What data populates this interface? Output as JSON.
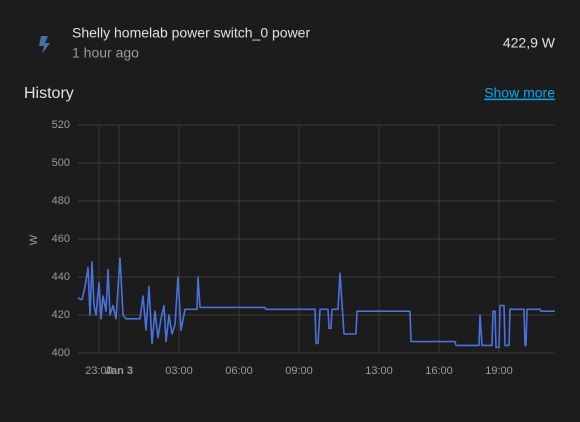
{
  "header": {
    "entity_name": "Shelly homelab power switch_0 power",
    "last_changed": "1 hour ago",
    "state": "422,9 W"
  },
  "history": {
    "title": "History",
    "link": "Show more"
  },
  "chart_data": {
    "type": "line",
    "y_label": "W",
    "color": "#4a72dc",
    "grid": true,
    "ylim": [
      400,
      520
    ],
    "yticks": [
      400,
      420,
      440,
      460,
      480,
      500,
      520
    ],
    "xlim": [
      -2.05,
      21.8
    ],
    "xticks": [
      {
        "value": -1,
        "label": "23:00"
      },
      {
        "value": 0,
        "label": "Jan 3"
      },
      {
        "value": 3,
        "label": "03:00"
      },
      {
        "value": 6,
        "label": "06:00"
      },
      {
        "value": 9,
        "label": "09:00"
      },
      {
        "value": 13,
        "label": "13:00"
      },
      {
        "value": 16,
        "label": "16:00"
      },
      {
        "value": 19,
        "label": "19:00"
      }
    ],
    "x": [
      -2.05,
      -1.85,
      -1.7,
      -1.55,
      -1.45,
      -1.35,
      -1.25,
      -1.15,
      -1.0,
      -0.9,
      -0.8,
      -0.65,
      -0.55,
      -0.45,
      -0.3,
      -0.15,
      0.05,
      0.2,
      0.35,
      1.05,
      1.2,
      1.35,
      1.5,
      1.65,
      1.8,
      1.95,
      2.1,
      2.25,
      2.35,
      2.5,
      2.65,
      2.8,
      2.95,
      3.1,
      3.3,
      3.9,
      3.95,
      4.05,
      7.3,
      7.35,
      9.8,
      9.85,
      9.95,
      10.05,
      10.45,
      10.5,
      10.6,
      10.65,
      10.95,
      11.05,
      11.25,
      11.85,
      11.9,
      14.55,
      14.6,
      16.8,
      16.85,
      18.0,
      18.05,
      18.15,
      18.65,
      18.7,
      18.8,
      18.85,
      19.0,
      19.05,
      19.25,
      19.3,
      19.5,
      19.55,
      20.25,
      20.3,
      20.35,
      20.4,
      21.05,
      21.1,
      21.8
    ],
    "values": [
      429,
      428,
      435,
      445,
      420,
      448,
      425,
      420,
      437,
      418,
      430,
      422,
      444,
      420,
      425,
      418,
      450,
      420,
      418,
      418,
      430,
      412,
      435,
      405,
      422,
      408,
      418,
      425,
      406,
      420,
      410,
      415,
      440,
      412,
      423,
      423,
      440,
      424,
      424,
      423,
      423,
      405,
      405,
      423,
      423,
      413,
      413,
      423,
      423,
      442,
      410,
      410,
      422,
      422,
      406,
      406,
      404,
      404,
      420,
      404,
      404,
      422,
      422,
      403,
      403,
      425,
      425,
      404,
      404,
      423,
      423,
      404,
      404,
      423,
      423,
      422,
      422
    ]
  }
}
